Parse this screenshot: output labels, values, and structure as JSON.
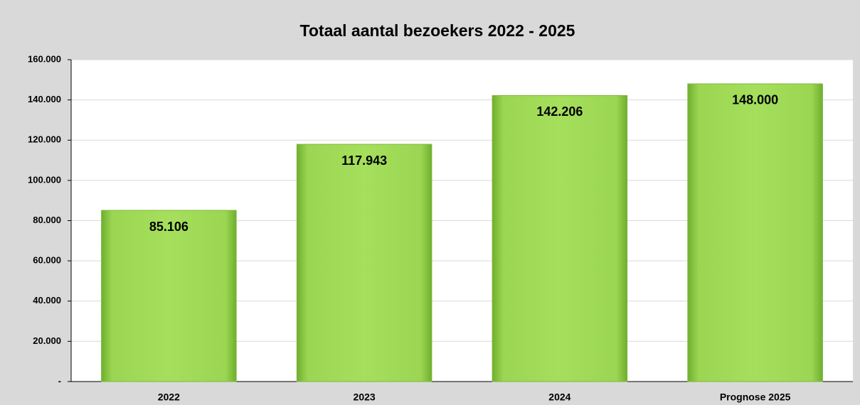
{
  "chart_data": {
    "type": "bar",
    "title": "Totaal aantal bezoekers 2022 - 2025",
    "categories": [
      "2022",
      "2023",
      "2024",
      "Prognose 2025"
    ],
    "values": [
      85106,
      117943,
      142206,
      148000
    ],
    "value_labels": [
      "85.106",
      "117.943",
      "142.206",
      "148.000"
    ],
    "color": "#9bd652",
    "ylim": [
      0,
      160000
    ],
    "yticks": [
      {
        "value": 0,
        "label": "-"
      },
      {
        "value": 20000,
        "label": "20.000"
      },
      {
        "value": 40000,
        "label": "40.000"
      },
      {
        "value": 60000,
        "label": "60.000"
      },
      {
        "value": 80000,
        "label": "80.000"
      },
      {
        "value": 100000,
        "label": "100.000"
      },
      {
        "value": 120000,
        "label": "120.000"
      },
      {
        "value": 140000,
        "label": "140.000"
      },
      {
        "value": 160000,
        "label": "160.000"
      }
    ],
    "grid": true
  }
}
